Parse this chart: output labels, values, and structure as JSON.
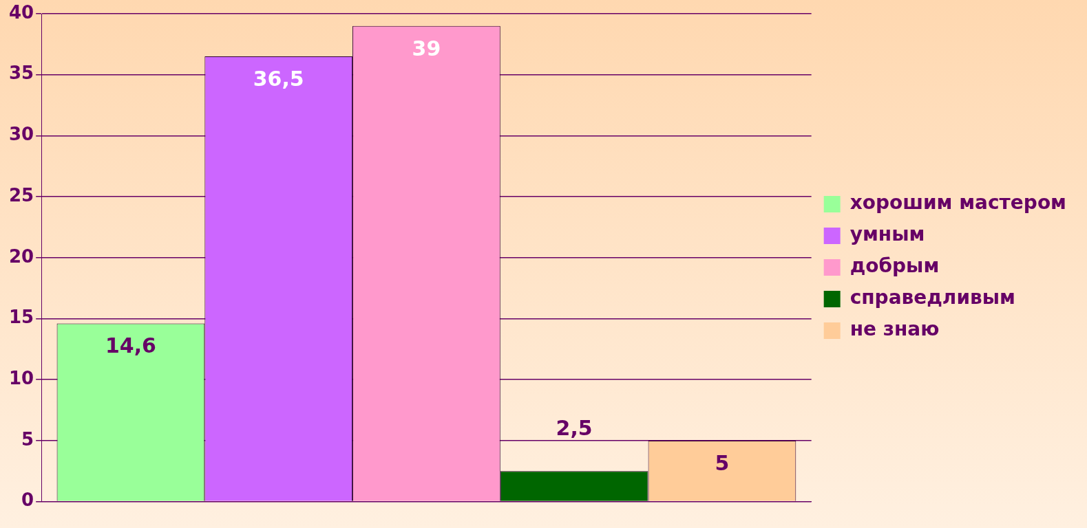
{
  "chart_data": {
    "type": "bar",
    "categories": [
      null
    ],
    "series": [
      {
        "name": "хорошим мастером",
        "color": "#99ff99",
        "values": [
          14.6
        ],
        "value_labels": [
          "14,6"
        ]
      },
      {
        "name": "умным",
        "color": "#cc66ff",
        "values": [
          36.5
        ],
        "value_labels": [
          "36,5"
        ]
      },
      {
        "name": "добрым",
        "color": "#ff99cc",
        "values": [
          39
        ],
        "value_labels": [
          "39"
        ]
      },
      {
        "name": "справедливым",
        "color": "#006600",
        "values": [
          2.5
        ],
        "value_labels": [
          "2,5"
        ]
      },
      {
        "name": "не знаю",
        "color": "#ffcc99",
        "values": [
          5
        ],
        "value_labels": [
          "5"
        ]
      }
    ],
    "ylim": [
      0,
      40
    ],
    "yticks": [
      0,
      5,
      10,
      15,
      20,
      25,
      30,
      35,
      40
    ],
    "grid": "y",
    "legend": "right"
  }
}
